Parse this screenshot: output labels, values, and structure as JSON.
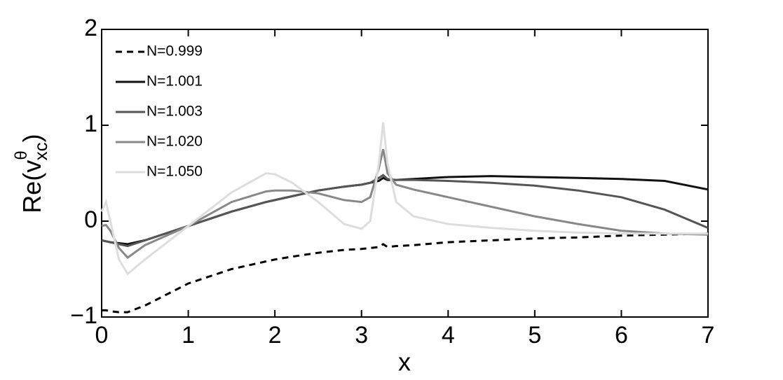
{
  "chart_data": {
    "type": "line",
    "xlabel": "x",
    "ylabel": {
      "base": "Re(v",
      "sup": "θ",
      "sub": "xc",
      "close": ")"
    },
    "xlim": [
      0,
      7
    ],
    "xticks": [
      0,
      1,
      2,
      3,
      4,
      5,
      6,
      7
    ],
    "ylim": [
      -1,
      2
    ],
    "yticks": [
      -1,
      0,
      1,
      2
    ],
    "legend": "upper-left",
    "x": [
      0,
      0.05,
      0.1,
      0.2,
      0.3,
      0.5,
      1,
      1.5,
      1.9,
      2,
      2.2,
      2.5,
      2.8,
      3,
      3.1,
      3.2,
      3.25,
      3.3,
      3.4,
      3.6,
      4,
      4.5,
      5,
      5.5,
      6,
      6.5,
      7
    ],
    "series": [
      {
        "name": "N=0.999",
        "color": "#000000",
        "linestyle": "dashed",
        "values": [
          -0.93,
          -0.93,
          -0.94,
          -0.95,
          -0.95,
          -0.88,
          -0.65,
          -0.5,
          -0.42,
          -0.4,
          -0.37,
          -0.33,
          -0.3,
          -0.29,
          -0.28,
          -0.27,
          -0.24,
          -0.27,
          -0.26,
          -0.25,
          -0.22,
          -0.2,
          -0.18,
          -0.17,
          -0.15,
          -0.14,
          -0.13
        ]
      },
      {
        "name": "N=1.001",
        "color": "#111111",
        "linestyle": "solid",
        "values": [
          -0.2,
          -0.21,
          -0.22,
          -0.23,
          -0.24,
          -0.2,
          -0.05,
          0.1,
          0.2,
          0.22,
          0.26,
          0.32,
          0.36,
          0.38,
          0.4,
          0.42,
          0.45,
          0.43,
          0.43,
          0.44,
          0.46,
          0.47,
          0.46,
          0.45,
          0.44,
          0.42,
          0.33
        ]
      },
      {
        "name": "N=1.003",
        "color": "#555555",
        "linestyle": "solid",
        "values": [
          -0.2,
          -0.21,
          -0.22,
          -0.24,
          -0.26,
          -0.2,
          -0.05,
          0.1,
          0.2,
          0.22,
          0.26,
          0.32,
          0.36,
          0.38,
          0.4,
          0.45,
          0.48,
          0.44,
          0.43,
          0.43,
          0.42,
          0.4,
          0.37,
          0.32,
          0.25,
          0.12,
          -0.07
        ]
      },
      {
        "name": "N=1.020",
        "color": "#888888",
        "linestyle": "solid",
        "values": [
          -0.05,
          -0.04,
          -0.1,
          -0.28,
          -0.38,
          -0.25,
          -0.05,
          0.2,
          0.31,
          0.32,
          0.32,
          0.29,
          0.22,
          0.2,
          0.25,
          0.55,
          0.75,
          0.5,
          0.38,
          0.33,
          0.25,
          0.15,
          0.05,
          -0.03,
          -0.1,
          -0.13,
          -0.14
        ]
      },
      {
        "name": "N=1.050",
        "color": "#dddddd",
        "linestyle": "solid",
        "values": [
          0.1,
          0.2,
          0.0,
          -0.4,
          -0.55,
          -0.4,
          -0.05,
          0.3,
          0.5,
          0.49,
          0.4,
          0.2,
          -0.03,
          -0.08,
          0.0,
          0.6,
          1.03,
          0.6,
          0.2,
          0.05,
          -0.03,
          -0.07,
          -0.1,
          -0.12,
          -0.13,
          -0.13,
          -0.13
        ]
      }
    ]
  }
}
